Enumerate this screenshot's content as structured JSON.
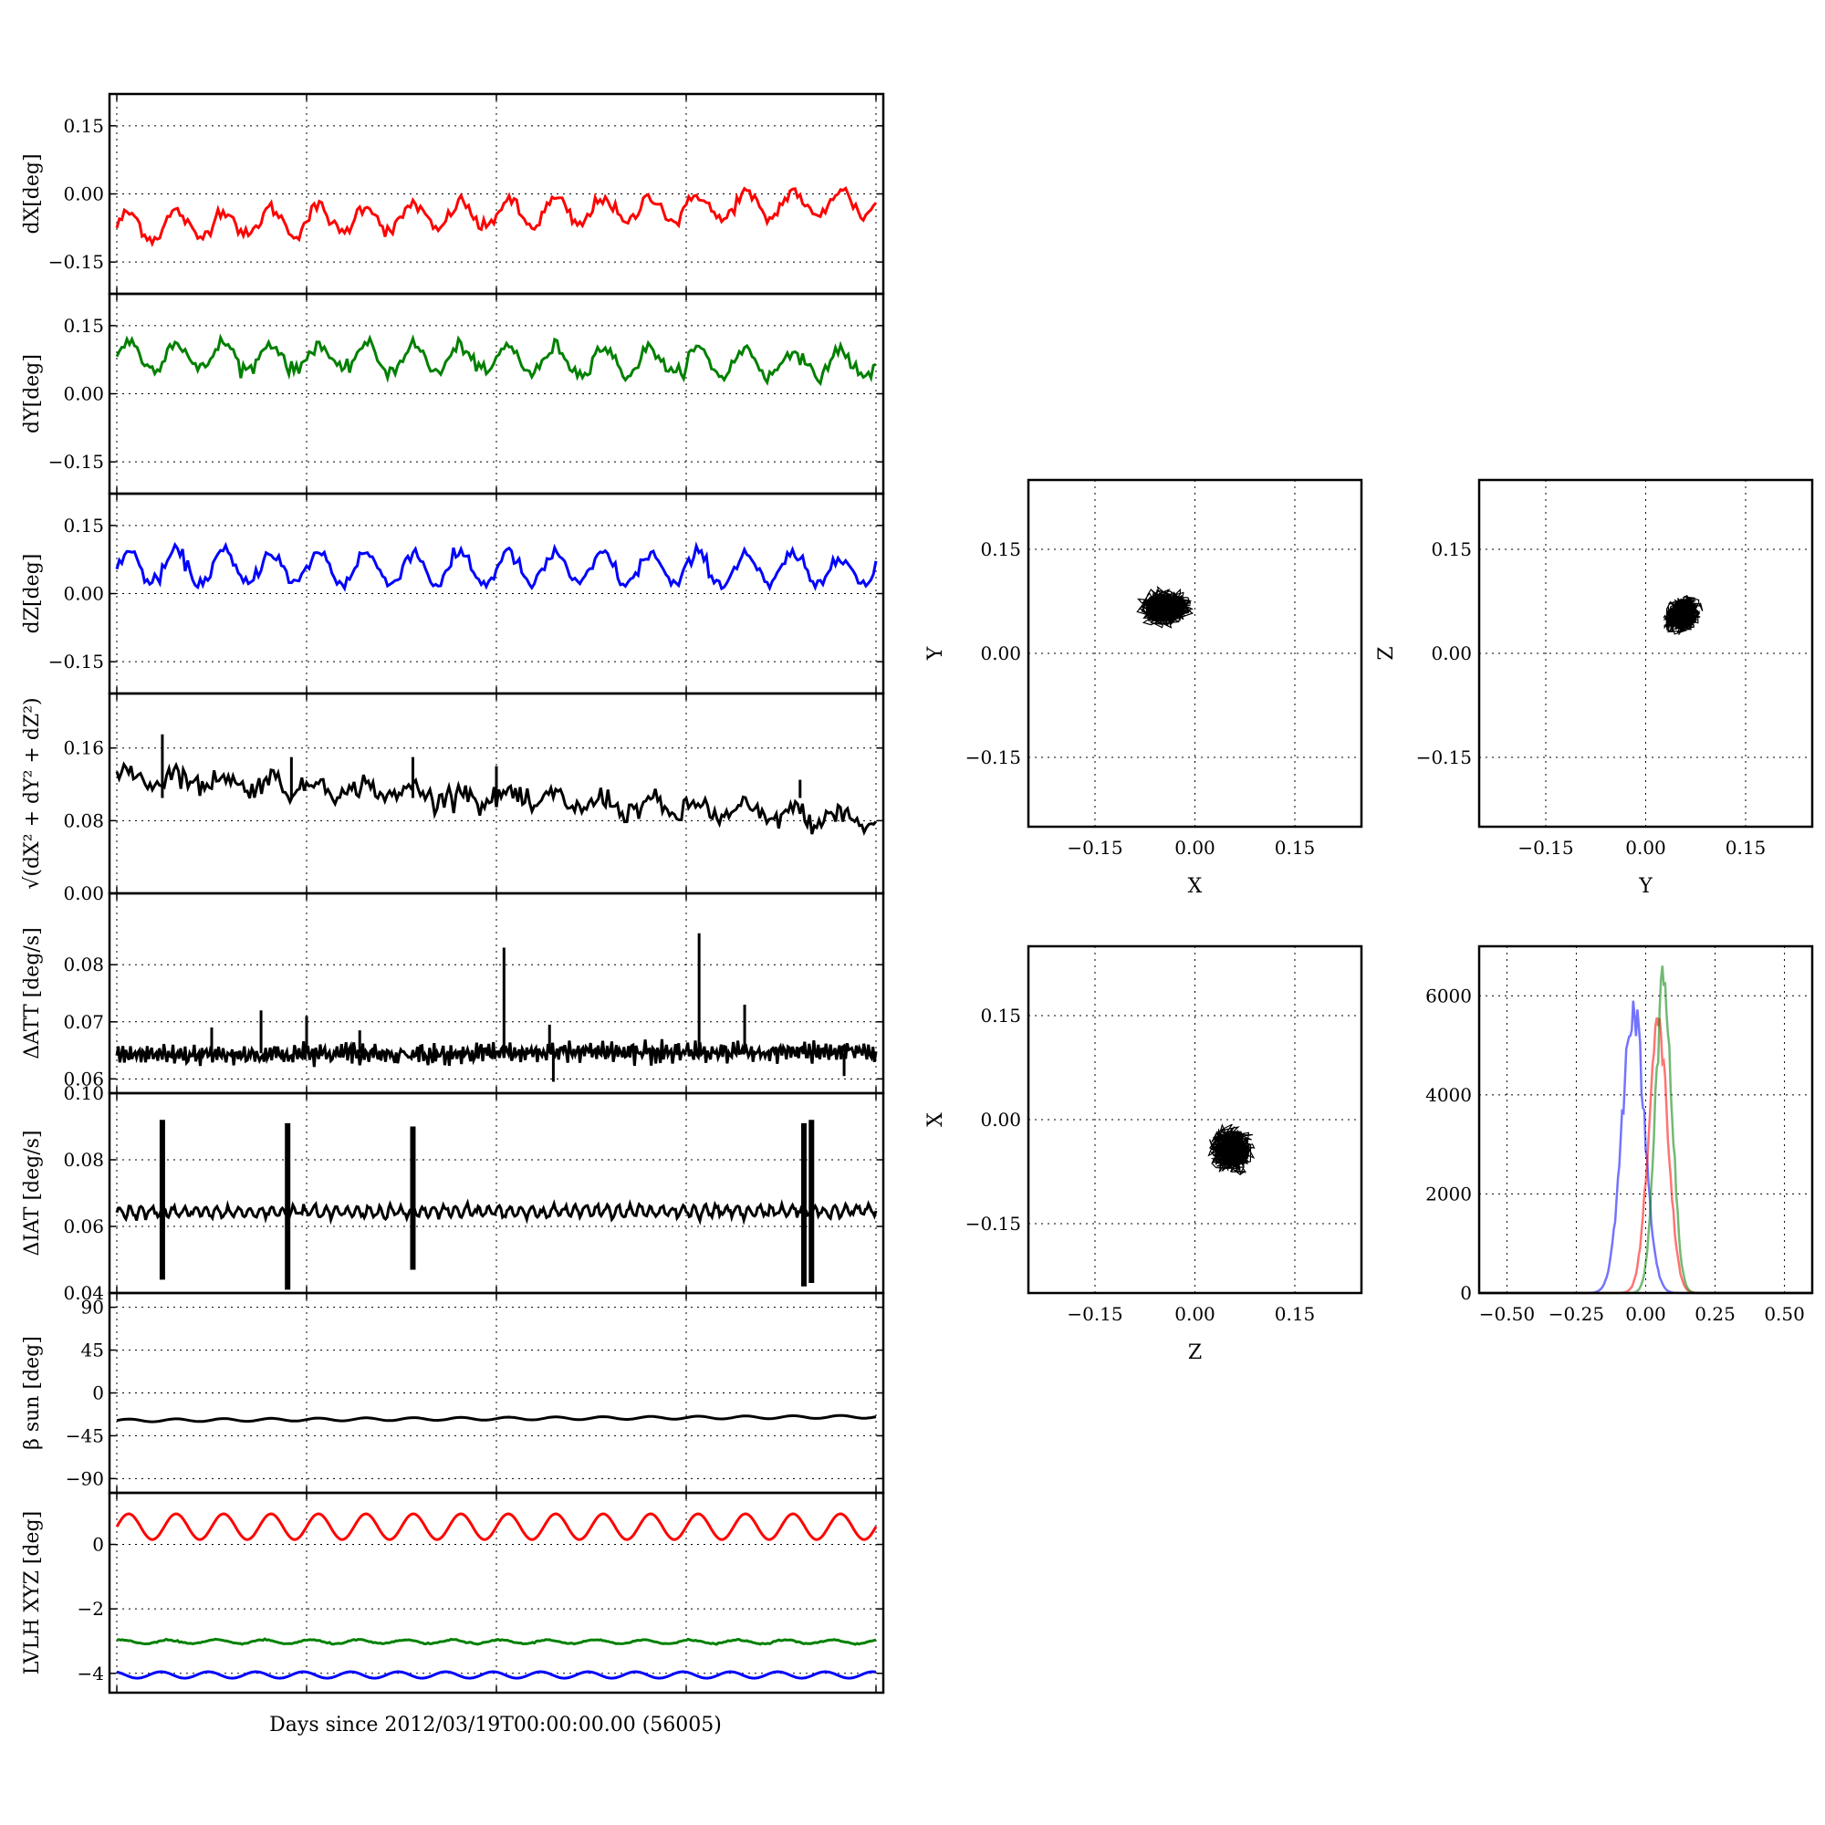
{
  "figure": {
    "bottom_xlabel": "Days since 2012/03/19T00:00:00.00 (56005)"
  },
  "chart_data": [
    {
      "id": "dX",
      "type": "line",
      "ylabel": "dX[deg]",
      "ylim": [
        -0.22,
        0.22
      ],
      "yticks": [
        "0.15",
        "0.00",
        "−0.15"
      ],
      "ytick_values": [
        0.15,
        0,
        -0.15
      ],
      "series": [
        {
          "color": "#ff0000",
          "mean": -0.045,
          "trend": 0.055,
          "amplitude": 0.03,
          "cycles": 16,
          "noise": 0.008,
          "points": 300
        }
      ]
    },
    {
      "id": "dY",
      "type": "line",
      "ylabel": "dY[deg]",
      "ylim": [
        -0.22,
        0.22
      ],
      "yticks": [
        "0.15",
        "0.00",
        "−0.15"
      ],
      "ytick_values": [
        0.15,
        0,
        -0.15
      ],
      "series": [
        {
          "color": "#008000",
          "mean": 0.075,
          "trend": -0.02,
          "amplitude": 0.03,
          "cycles": 16,
          "noise": 0.008,
          "points": 300
        }
      ]
    },
    {
      "id": "dZ",
      "type": "line",
      "ylabel": "dZ[deg]",
      "ylim": [
        -0.22,
        0.22
      ],
      "yticks": [
        "0.15",
        "0.00",
        "−0.15"
      ],
      "ytick_values": [
        0.15,
        0,
        -0.15
      ],
      "series": [
        {
          "color": "#0000ff",
          "mean": 0.055,
          "trend": -0.005,
          "amplitude": 0.035,
          "cycles": 16,
          "noise": 0.008,
          "points": 300
        }
      ]
    },
    {
      "id": "norm",
      "type": "line",
      "ylabel": "√(dX² + dY² + dZ²)",
      "ylim": [
        0,
        0.22
      ],
      "yticks": [
        "0.16",
        "0.08",
        "0.00"
      ],
      "ytick_values": [
        0.16,
        0.08,
        0
      ],
      "series": [
        {
          "color": "#000000",
          "mean": 0.105,
          "trend": -0.05,
          "amplitude": 0.008,
          "cycles": 16,
          "noise": 0.006,
          "points": 320
        }
      ],
      "spikes": [
        {
          "x": 0.06,
          "y": 0.175
        },
        {
          "x": 0.23,
          "y": 0.15
        },
        {
          "x": 0.39,
          "y": 0.15
        },
        {
          "x": 0.5,
          "y": 0.14
        },
        {
          "x": 0.9,
          "y": 0.125
        }
      ]
    },
    {
      "id": "datt",
      "type": "line",
      "ylabel": "ΔATT [deg/s]",
      "ylim": [
        0.0575,
        0.0925
      ],
      "yticks": [
        "0.08",
        "0.07",
        "0.06"
      ],
      "ytick_values": [
        0.08,
        0.07,
        0.06
      ],
      "series": [
        {
          "color": "#000000",
          "mean": 0.0645,
          "trend": 0.0005,
          "amplitude": 0.0012,
          "cycles": 180,
          "noise": 0.0006,
          "points": 500
        }
      ],
      "spikes": [
        {
          "x": 0.125,
          "y": 0.069
        },
        {
          "x": 0.19,
          "y": 0.072
        },
        {
          "x": 0.25,
          "y": 0.071
        },
        {
          "x": 0.32,
          "y": 0.0685
        },
        {
          "x": 0.51,
          "y": 0.083
        },
        {
          "x": 0.57,
          "y": 0.0695
        },
        {
          "x": 0.575,
          "y": 0.0595
        },
        {
          "x": 0.767,
          "y": 0.0855
        },
        {
          "x": 0.827,
          "y": 0.073
        },
        {
          "x": 0.958,
          "y": 0.0605
        }
      ]
    },
    {
      "id": "diat",
      "type": "line",
      "ylabel": "ΔIAT [deg/s]",
      "ylim": [
        0.04,
        0.1
      ],
      "yticks": [
        "0.10",
        "0.08",
        "0.06",
        "0.04"
      ],
      "ytick_values": [
        0.1,
        0.08,
        0.06,
        0.04
      ],
      "series": [
        {
          "color": "#000000",
          "mean": 0.0645,
          "trend": 0.0005,
          "amplitude": 0.0015,
          "cycles": 70,
          "noise": 0.0005,
          "points": 500
        }
      ],
      "bursts": [
        {
          "x": 0.06,
          "y0": 0.044,
          "y1": 0.092
        },
        {
          "x": 0.225,
          "y0": 0.041,
          "y1": 0.091
        },
        {
          "x": 0.39,
          "y0": 0.047,
          "y1": 0.09
        },
        {
          "x": 0.905,
          "y0": 0.042,
          "y1": 0.091
        },
        {
          "x": 0.915,
          "y0": 0.043,
          "y1": 0.092
        }
      ]
    },
    {
      "id": "beta",
      "type": "line",
      "ylabel": "β sun [deg]",
      "ylim": [
        -105,
        105
      ],
      "yticks": [
        "90",
        "45",
        "0",
        "−45",
        "−90"
      ],
      "ytick_values": [
        90,
        45,
        0,
        -45,
        -90
      ],
      "series": [
        {
          "color": "#000000",
          "mean": -27,
          "trend": 4,
          "amplitude": 1.5,
          "cycles": 16,
          "noise": 0,
          "points": 300
        }
      ]
    },
    {
      "id": "lvlh",
      "type": "line",
      "ylabel": "LVLH XYZ [deg]",
      "ylim": [
        -4.6,
        1.6
      ],
      "yticks": [
        "0",
        "−2",
        "−4"
      ],
      "ytick_values": [
        0,
        -2,
        -4
      ],
      "series": [
        {
          "color": "#ff0000",
          "mean": 0.55,
          "trend": 0,
          "amplitude": 0.4,
          "cycles": 16,
          "noise": 0,
          "points": 400
        },
        {
          "color": "#008000",
          "mean": -3.02,
          "trend": 0,
          "amplitude": 0.06,
          "cycles": 16,
          "noise": 0.01,
          "points": 400
        },
        {
          "color": "#0000ff",
          "mean": -4.05,
          "trend": 0,
          "amplitude": 0.1,
          "cycles": 16,
          "noise": 0,
          "points": 400
        }
      ]
    },
    {
      "id": "xy",
      "type": "scatter",
      "xlabel": "X",
      "ylabel": "Y",
      "xlim": [
        -0.25,
        0.25
      ],
      "ylim": [
        -0.25,
        0.25
      ],
      "xticks": [
        "−0.15",
        "0.00",
        "0.15"
      ],
      "tick_values": [
        -0.15,
        0,
        0.15
      ],
      "yticks": [
        "0.15",
        "0.00",
        "−0.15"
      ],
      "cluster": {
        "cx": -0.045,
        "cy": 0.065,
        "rx": 0.055,
        "ry": 0.04,
        "n": 700
      }
    },
    {
      "id": "yz",
      "type": "scatter",
      "xlabel": "Y",
      "ylabel": "Z",
      "xlim": [
        -0.25,
        0.25
      ],
      "ylim": [
        -0.25,
        0.25
      ],
      "xticks": [
        "−0.15",
        "0.00",
        "0.15"
      ],
      "tick_values": [
        -0.15,
        0,
        0.15
      ],
      "yticks": [
        "0.15",
        "0.00",
        "−0.15"
      ],
      "cluster": {
        "cx": 0.055,
        "cy": 0.055,
        "rx": 0.035,
        "ry": 0.045,
        "n": 700,
        "tilt": -0.6
      }
    },
    {
      "id": "zx",
      "type": "scatter",
      "xlabel": "Z",
      "ylabel": "X",
      "xlim": [
        -0.25,
        0.25
      ],
      "ylim": [
        -0.25,
        0.25
      ],
      "xticks": [
        "−0.15",
        "0.00",
        "0.15"
      ],
      "tick_values": [
        -0.15,
        0,
        0.15
      ],
      "yticks": [
        "0.15",
        "0.00",
        "−0.15"
      ],
      "cluster": {
        "cx": 0.055,
        "cy": -0.045,
        "rx": 0.05,
        "ry": 0.05,
        "n": 700
      }
    },
    {
      "id": "hist",
      "type": "histogram",
      "xlim": [
        -0.6,
        0.6
      ],
      "ylim": [
        0,
        7000
      ],
      "xticks": [
        "−0.50",
        "−0.25",
        "0.00",
        "0.25",
        "0.50"
      ],
      "xtick_values": [
        -0.5,
        -0.25,
        0,
        0.25,
        0.5
      ],
      "yticks": [
        "6000",
        "4000",
        "2000",
        "0"
      ],
      "ytick_values": [
        6000,
        4000,
        2000,
        0
      ],
      "series": [
        {
          "color": "#0000ff",
          "center": -0.045,
          "sigma": 0.04,
          "peak": 5900
        },
        {
          "color": "#ff0000",
          "center": 0.045,
          "sigma": 0.035,
          "peak": 5500
        },
        {
          "color": "#008000",
          "center": 0.065,
          "sigma": 0.03,
          "peak": 6400
        }
      ]
    }
  ]
}
